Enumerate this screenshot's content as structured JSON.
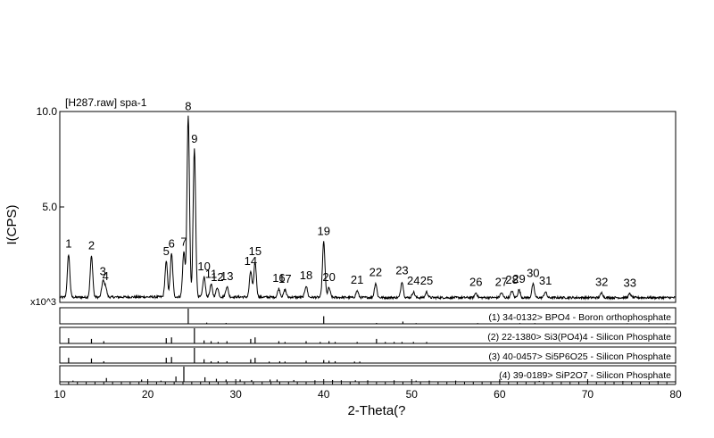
{
  "chart_data": {
    "type": "line",
    "title": "[H287.raw] spa-1",
    "xlabel": "2-Theta(?",
    "ylabel": "I(CPS)",
    "y_multiplier_label": "x10^3",
    "xlim": [
      10,
      80
    ],
    "ylim": [
      0,
      10.0
    ],
    "x_ticks": [
      10,
      20,
      30,
      40,
      50,
      60,
      70,
      80
    ],
    "y_ticks": [
      {
        "value": 5.0,
        "label": "5.0"
      },
      {
        "value": 10.0,
        "label": "10.0"
      }
    ],
    "baseline": 0.25,
    "peaks": [
      {
        "label": "1",
        "x": 11.0,
        "y": 2.5
      },
      {
        "label": "2",
        "x": 13.6,
        "y": 2.4
      },
      {
        "label": "3",
        "x": 14.9,
        "y": 1.05
      },
      {
        "label": "4",
        "x": 15.2,
        "y": 0.8
      },
      {
        "label": "5",
        "x": 22.1,
        "y": 2.1
      },
      {
        "label": "6",
        "x": 22.7,
        "y": 2.5
      },
      {
        "label": "7",
        "x": 24.1,
        "y": 2.6
      },
      {
        "label": "8",
        "x": 24.6,
        "y": 9.7
      },
      {
        "label": "9",
        "x": 25.3,
        "y": 8.0
      },
      {
        "label": "10",
        "x": 26.4,
        "y": 1.3
      },
      {
        "label": "11",
        "x": 27.2,
        "y": 0.9
      },
      {
        "label": "12",
        "x": 27.9,
        "y": 0.75
      },
      {
        "label": "13",
        "x": 29.0,
        "y": 0.8
      },
      {
        "label": "14",
        "x": 31.7,
        "y": 1.6
      },
      {
        "label": "15",
        "x": 32.2,
        "y": 2.1
      },
      {
        "label": "16",
        "x": 34.9,
        "y": 0.7
      },
      {
        "label": "17",
        "x": 35.6,
        "y": 0.65
      },
      {
        "label": "18",
        "x": 38.0,
        "y": 0.85
      },
      {
        "label": "19",
        "x": 40.0,
        "y": 3.15
      },
      {
        "label": "20",
        "x": 40.6,
        "y": 0.75
      },
      {
        "label": "21",
        "x": 43.8,
        "y": 0.6
      },
      {
        "label": "22",
        "x": 45.9,
        "y": 1.0
      },
      {
        "label": "23",
        "x": 48.9,
        "y": 1.1
      },
      {
        "label": "24",
        "x": 50.2,
        "y": 0.55
      },
      {
        "label": "25",
        "x": 51.7,
        "y": 0.55
      },
      {
        "label": "26",
        "x": 57.3,
        "y": 0.5
      },
      {
        "label": "27",
        "x": 60.2,
        "y": 0.5
      },
      {
        "label": "28",
        "x": 61.4,
        "y": 0.6
      },
      {
        "label": "29",
        "x": 62.2,
        "y": 0.65
      },
      {
        "label": "30",
        "x": 63.8,
        "y": 0.95
      },
      {
        "label": "31",
        "x": 65.2,
        "y": 0.55
      },
      {
        "label": "32",
        "x": 71.6,
        "y": 0.5
      },
      {
        "label": "33",
        "x": 74.8,
        "y": 0.45
      }
    ],
    "reference_patterns": [
      {
        "label": "(1) 34-0132> BPO4 - Boron orthophosphate",
        "lines": [
          [
            24.6,
            1.0
          ],
          [
            26.7,
            0.08
          ],
          [
            28.9,
            0.06
          ],
          [
            40.0,
            0.5
          ],
          [
            46.0,
            0.06
          ],
          [
            49.0,
            0.15
          ],
          [
            50.5,
            0.05
          ],
          [
            57.5,
            0.05
          ],
          [
            62.3,
            0.05
          ],
          [
            64.0,
            0.05
          ],
          [
            74.5,
            0.04
          ],
          [
            77.0,
            0.04
          ],
          [
            79.0,
            0.04
          ]
        ]
      },
      {
        "label": "(2) 22-1380> Si3(PO4)4 - Silicon Phosphate",
        "lines": [
          [
            11.0,
            0.35
          ],
          [
            13.6,
            0.3
          ],
          [
            15.0,
            0.15
          ],
          [
            22.1,
            0.35
          ],
          [
            22.7,
            0.4
          ],
          [
            25.3,
            1.0
          ],
          [
            26.4,
            0.2
          ],
          [
            27.2,
            0.15
          ],
          [
            28.0,
            0.1
          ],
          [
            29.0,
            0.15
          ],
          [
            31.7,
            0.3
          ],
          [
            32.2,
            0.4
          ],
          [
            34.9,
            0.15
          ],
          [
            35.6,
            0.1
          ],
          [
            38.0,
            0.15
          ],
          [
            39.6,
            0.1
          ],
          [
            40.6,
            0.15
          ],
          [
            41.3,
            0.1
          ],
          [
            43.8,
            0.1
          ],
          [
            46.0,
            0.3
          ],
          [
            47.0,
            0.1
          ],
          [
            48.0,
            0.1
          ],
          [
            48.9,
            0.1
          ],
          [
            50.2,
            0.1
          ],
          [
            51.7,
            0.1
          ]
        ]
      },
      {
        "label": "(3) 40-0457> Si5P6O25 - Silicon Phosphate",
        "lines": [
          [
            11.0,
            0.35
          ],
          [
            13.6,
            0.3
          ],
          [
            15.0,
            0.12
          ],
          [
            22.1,
            0.35
          ],
          [
            22.7,
            0.4
          ],
          [
            25.3,
            1.0
          ],
          [
            26.4,
            0.25
          ],
          [
            27.2,
            0.12
          ],
          [
            28.0,
            0.12
          ],
          [
            29.0,
            0.12
          ],
          [
            31.7,
            0.25
          ],
          [
            32.2,
            0.35
          ],
          [
            33.8,
            0.1
          ],
          [
            35.0,
            0.12
          ],
          [
            35.6,
            0.1
          ],
          [
            38.0,
            0.15
          ],
          [
            40.0,
            0.2
          ],
          [
            40.6,
            0.15
          ],
          [
            41.3,
            0.12
          ],
          [
            43.5,
            0.1
          ],
          [
            44.1,
            0.1
          ]
        ]
      },
      {
        "label": "(4) 39-0189> SiP2O7 - Silicon Phosphate",
        "lines": [
          [
            11.5,
            0.08
          ],
          [
            15.3,
            0.25
          ],
          [
            19.3,
            0.15
          ],
          [
            21.5,
            0.08
          ],
          [
            23.2,
            0.35
          ],
          [
            24.1,
            1.0
          ],
          [
            26.5,
            0.3
          ],
          [
            27.8,
            0.2
          ],
          [
            28.9,
            0.15
          ],
          [
            30.5,
            0.15
          ],
          [
            31.8,
            0.12
          ],
          [
            33.9,
            0.15
          ],
          [
            34.7,
            0.15
          ],
          [
            36.6,
            0.12
          ],
          [
            39.0,
            0.1
          ],
          [
            41.0,
            0.12
          ],
          [
            42.0,
            0.1
          ],
          [
            43.6,
            0.1
          ],
          [
            45.0,
            0.1
          ],
          [
            48.0,
            0.1
          ],
          [
            50.5,
            0.08
          ],
          [
            52.0,
            0.08
          ],
          [
            55.0,
            0.08
          ],
          [
            60.0,
            0.08
          ],
          [
            64.5,
            0.06
          ],
          [
            70.0,
            0.05
          ],
          [
            74.0,
            0.05
          ],
          [
            78.0,
            0.05
          ]
        ]
      }
    ]
  }
}
